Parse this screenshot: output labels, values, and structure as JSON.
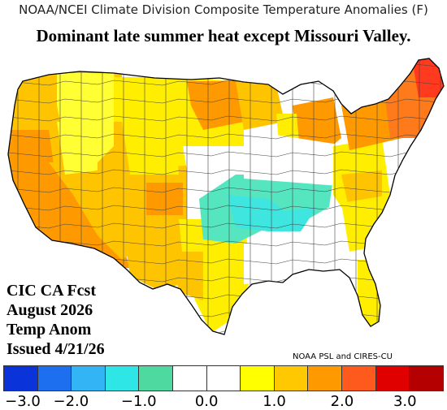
{
  "header": "NOAA/NCEI Climate Division Composite Temperature Anomalies (F)",
  "subtitle": "Dominant late summer heat except Missouri Valley.",
  "caption_lines": [
    "CIC CA Fcst",
    "August 2026",
    "Temp Anom",
    "Issued 4/21/26"
  ],
  "credit": "NOAA PSL and CIRES-CU",
  "legend": {
    "colors": [
      "#0a33d9",
      "#1e6ef0",
      "#33b5f5",
      "#2ee6e6",
      "#4dd9a0",
      "#ffffff",
      "#ffffff",
      "#ffff00",
      "#ffc800",
      "#ff9900",
      "#ff5a1e",
      "#e00000",
      "#b40000"
    ],
    "tick_labels": [
      "−3.0",
      "−2.0",
      "−1.0",
      "0.0",
      "1.0",
      "2.0",
      "3.0"
    ]
  },
  "map": {
    "colors": {
      "neutral": "#ffffff",
      "light_yellow": "#ffff33",
      "yellow": "#ffee00",
      "gold": "#ffc400",
      "orange": "#ff9900",
      "dark_orange": "#ff7a1a",
      "red": "#ff3a1e",
      "teal": "#55e6c0",
      "aqua": "#3fe6e0"
    }
  }
}
